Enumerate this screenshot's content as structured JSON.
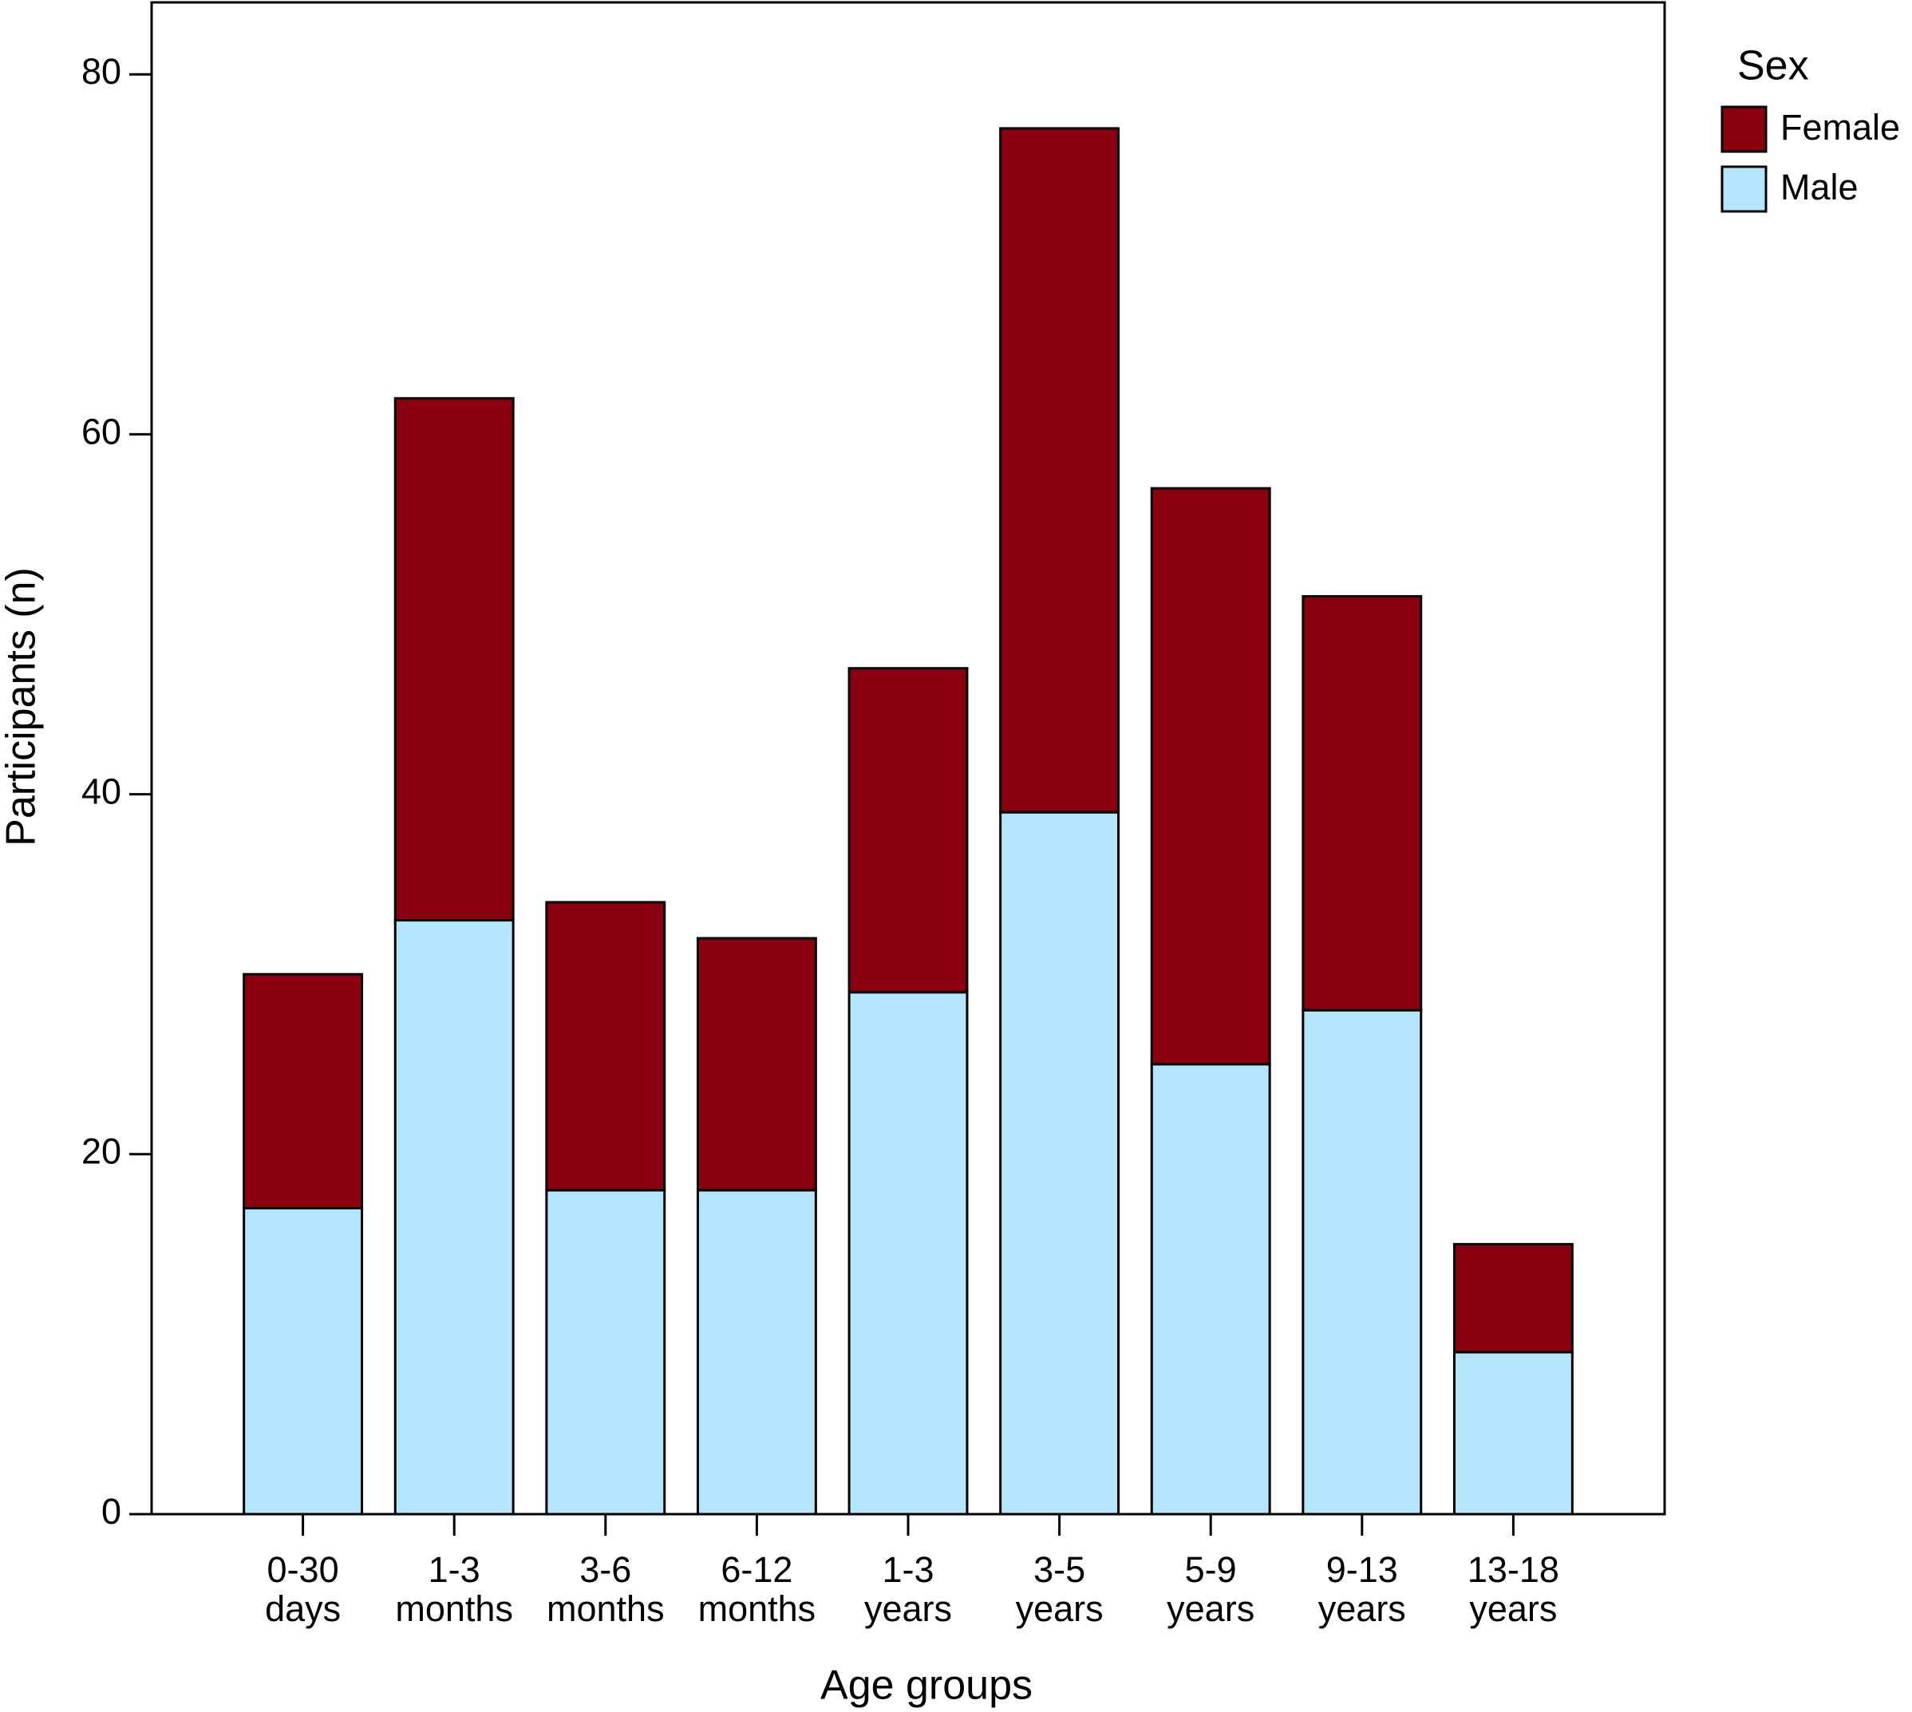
{
  "chart_data": {
    "type": "stacked_bar",
    "x_label": "Age groups",
    "y_label": "Participants (n)",
    "categories": [
      "0-30\ndays",
      "1-3\nmonths",
      "3-6\nmonths",
      "6-12\nmonths",
      "1-3\nyears",
      "3-5\nyears",
      "5-9\nyears",
      "9-13\nyears",
      "13-18\nyears"
    ],
    "series": [
      {
        "name": "Female",
        "color": "#8b0010",
        "values": [
          13,
          29,
          16,
          14,
          18,
          38,
          32,
          23,
          6
        ]
      },
      {
        "name": "Male",
        "color": "#b3e5fc",
        "values": [
          17,
          33,
          18,
          18,
          29,
          39,
          25,
          28,
          9
        ]
      }
    ],
    "ylim": [
      0,
      84
    ],
    "yticks": [
      0,
      20,
      40,
      60,
      80
    ],
    "legend_title": "Sex",
    "legend": "top-right-outside"
  }
}
